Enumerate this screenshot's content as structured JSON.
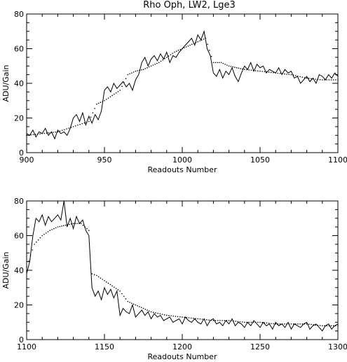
{
  "title": "Rho Oph, LW2, Lge3",
  "chart_data": [
    {
      "type": "line",
      "xlabel": "Readouts Number",
      "ylabel": "ADU/Gain",
      "xlim": [
        900,
        1100
      ],
      "ylim": [
        0,
        80
      ],
      "xticks": [
        900,
        950,
        1000,
        1050,
        1100
      ],
      "yticks": [
        0,
        20,
        40,
        60,
        80
      ],
      "grid": false,
      "series": [
        {
          "style": "solid",
          "x": [
            900,
            902,
            904,
            906,
            908,
            910,
            912,
            914,
            916,
            918,
            920,
            922,
            924,
            926,
            928,
            930,
            932,
            934,
            936,
            938,
            940,
            942,
            944,
            946,
            948,
            950,
            952,
            954,
            956,
            958,
            960,
            962,
            964,
            966,
            968,
            970,
            972,
            974,
            976,
            978,
            980,
            982,
            984,
            986,
            988,
            990,
            992,
            994,
            996,
            998,
            1000,
            1002,
            1004,
            1006,
            1008,
            1010,
            1012,
            1014,
            1016,
            1018,
            1020,
            1022,
            1024,
            1026,
            1028,
            1030,
            1032,
            1034,
            1036,
            1038,
            1040,
            1042,
            1044,
            1046,
            1048,
            1050,
            1052,
            1054,
            1056,
            1058,
            1060,
            1062,
            1064,
            1066,
            1068,
            1070,
            1072,
            1074,
            1076,
            1078,
            1080,
            1082,
            1084,
            1086,
            1088,
            1090,
            1092,
            1094,
            1096,
            1098,
            1100
          ],
          "y": [
            11,
            10,
            13,
            9,
            12,
            11,
            14,
            10,
            12,
            8,
            13,
            11,
            12,
            10,
            14,
            20,
            22,
            18,
            23,
            16,
            21,
            17,
            22,
            19,
            24,
            36,
            38,
            35,
            40,
            37,
            39,
            41,
            38,
            40,
            36,
            42,
            45,
            52,
            55,
            50,
            54,
            56,
            53,
            57,
            54,
            58,
            52,
            56,
            55,
            58,
            60,
            62,
            64,
            66,
            62,
            68,
            65,
            70,
            60,
            56,
            46,
            44,
            48,
            43,
            47,
            45,
            49,
            44,
            41,
            46,
            50,
            48,
            52,
            47,
            51,
            49,
            50,
            46,
            48,
            47,
            46,
            49,
            45,
            48,
            46,
            47,
            43,
            44,
            40,
            42,
            44,
            41,
            43,
            40,
            45,
            44,
            42,
            45,
            43,
            46,
            44
          ]
        },
        {
          "style": "dotted",
          "x": [
            900,
            910,
            920,
            930,
            940,
            945,
            950,
            955,
            960,
            965,
            970,
            975,
            980,
            985,
            990,
            995,
            1000,
            1005,
            1010,
            1015,
            1020,
            1025,
            1030,
            1035,
            1040,
            1050,
            1060,
            1070,
            1080,
            1090,
            1100
          ],
          "y": [
            10,
            11,
            12,
            15,
            18,
            28,
            30,
            33,
            36,
            45,
            47,
            48,
            50,
            52,
            55,
            58,
            60,
            62,
            64,
            66,
            52,
            52,
            50,
            49,
            48,
            47,
            46,
            45,
            43,
            42,
            42
          ]
        }
      ]
    },
    {
      "type": "line",
      "xlabel": "Readouts Number",
      "ylabel": "ADU/Gain",
      "xlim": [
        1100,
        1300
      ],
      "ylim": [
        0,
        80
      ],
      "xticks": [
        1100,
        1150,
        1200,
        1250,
        1300
      ],
      "yticks": [
        0,
        20,
        40,
        60,
        80
      ],
      "grid": false,
      "series": [
        {
          "style": "solid",
          "x": [
            1100,
            1102,
            1104,
            1106,
            1108,
            1110,
            1112,
            1114,
            1116,
            1118,
            1120,
            1122,
            1124,
            1126,
            1128,
            1130,
            1132,
            1134,
            1136,
            1138,
            1140,
            1142,
            1144,
            1146,
            1148,
            1150,
            1152,
            1154,
            1156,
            1158,
            1160,
            1162,
            1164,
            1166,
            1168,
            1170,
            1172,
            1174,
            1176,
            1178,
            1180,
            1182,
            1184,
            1186,
            1188,
            1190,
            1192,
            1194,
            1196,
            1198,
            1200,
            1202,
            1204,
            1206,
            1208,
            1210,
            1212,
            1214,
            1216,
            1218,
            1220,
            1222,
            1224,
            1226,
            1228,
            1230,
            1232,
            1234,
            1236,
            1238,
            1240,
            1242,
            1244,
            1246,
            1248,
            1250,
            1252,
            1254,
            1256,
            1258,
            1260,
            1262,
            1264,
            1266,
            1268,
            1270,
            1272,
            1274,
            1276,
            1278,
            1280,
            1282,
            1284,
            1286,
            1288,
            1290,
            1292,
            1294,
            1296,
            1298,
            1300
          ],
          "y": [
            38,
            45,
            60,
            70,
            68,
            72,
            66,
            71,
            68,
            70,
            72,
            69,
            80,
            65,
            70,
            64,
            71,
            67,
            69,
            63,
            60,
            30,
            25,
            28,
            23,
            30,
            26,
            29,
            24,
            28,
            14,
            18,
            16,
            15,
            20,
            13,
            15,
            17,
            14,
            16,
            12,
            15,
            13,
            14,
            11,
            12,
            13,
            10,
            11,
            12,
            9,
            13,
            11,
            10,
            12,
            10,
            9,
            12,
            8,
            11,
            12,
            9,
            10,
            8,
            11,
            9,
            12,
            8,
            10,
            9,
            7,
            10,
            8,
            11,
            9,
            7,
            10,
            8,
            9,
            6,
            10,
            8,
            9,
            7,
            10,
            6,
            9,
            8,
            7,
            9,
            10,
            6,
            8,
            9,
            7,
            5,
            8,
            9,
            6,
            8,
            9
          ]
        },
        {
          "style": "dotted",
          "x": [
            1100,
            1105,
            1110,
            1115,
            1120,
            1125,
            1130,
            1135,
            1140,
            1142,
            1145,
            1150,
            1155,
            1160,
            1165,
            1170,
            1175,
            1180,
            1190,
            1200,
            1210,
            1220,
            1230,
            1240,
            1250,
            1260,
            1270,
            1280,
            1290,
            1300
          ],
          "y": [
            42,
            55,
            60,
            63,
            65,
            66,
            67,
            67,
            63,
            38,
            37,
            34,
            31,
            28,
            22,
            20,
            18,
            16,
            14,
            13,
            12,
            11,
            11,
            10,
            10,
            9,
            9,
            9,
            8,
            8
          ]
        }
      ]
    }
  ]
}
